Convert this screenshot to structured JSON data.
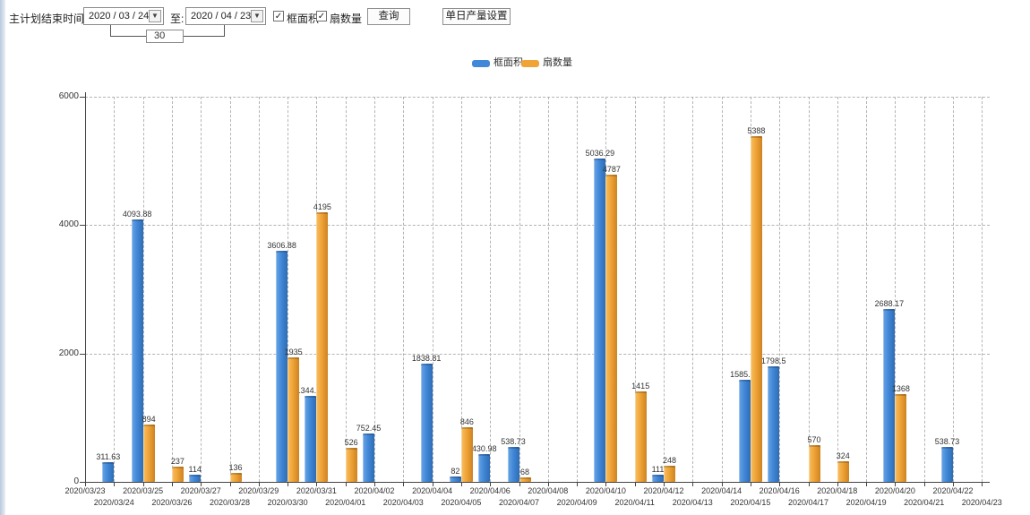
{
  "toolbar": {
    "label": "主计划结束时间:",
    "date_from": "2020 / 03 / 24",
    "to_label": "至:",
    "date_to": "2020 / 04 / 23",
    "span_days": "30",
    "checkboxes": [
      {
        "label": "框面积",
        "checked": true
      },
      {
        "label": "扇数量",
        "checked": true
      }
    ],
    "query_button": "查询",
    "daily_output_button": "单日产量设置",
    "check_glyph": "✓",
    "dropdown_glyph": "▼"
  },
  "legend": {
    "items": [
      {
        "label": "框面积",
        "color": "#4189d8"
      },
      {
        "label": "扇数量",
        "color": "#f0a437"
      }
    ]
  },
  "chart_data": {
    "type": "bar",
    "title": "",
    "xlabel": "",
    "ylabel": "",
    "ylim": [
      0,
      6000
    ],
    "yticks": [
      0,
      2000,
      4000,
      6000
    ],
    "grid": true,
    "legend_position": "top",
    "categories": [
      "2020/03/23",
      "2020/03/24",
      "2020/03/25",
      "2020/03/26",
      "2020/03/27",
      "2020/03/28",
      "2020/03/29",
      "2020/03/30",
      "2020/03/31",
      "2020/04/01",
      "2020/04/02",
      "2020/04/03",
      "2020/04/04",
      "2020/04/05",
      "2020/04/06",
      "2020/04/07",
      "2020/04/08",
      "2020/04/09",
      "2020/04/10",
      "2020/04/11",
      "2020/04/12",
      "2020/04/13",
      "2020/04/14",
      "2020/04/15",
      "2020/04/16",
      "2020/04/17",
      "2020/04/18",
      "2020/04/19",
      "2020/04/20",
      "2020/04/21",
      "2020/04/22",
      "2020/04/23"
    ],
    "series": [
      {
        "name": "框面积",
        "color": "#4189d8",
        "values": [
          0,
          311.63,
          4093.88,
          0,
          114,
          0,
          0,
          3606.88,
          1344.95,
          0,
          752.45,
          0,
          1838.81,
          82,
          430.98,
          538.73,
          0,
          0,
          5036.29,
          0,
          111,
          0,
          0,
          1585.96,
          1798.5,
          0,
          0,
          0,
          2688.17,
          0,
          538.73,
          0
        ]
      },
      {
        "name": "扇数量",
        "color": "#f0a437",
        "values": [
          0,
          0,
          894,
          237,
          0,
          136,
          0,
          1935,
          4195,
          526,
          0,
          0,
          0,
          846,
          0,
          68,
          0,
          0,
          4787,
          1415,
          248,
          0,
          0,
          5388,
          0,
          570,
          324,
          0,
          1368,
          0,
          0,
          0
        ]
      }
    ]
  }
}
